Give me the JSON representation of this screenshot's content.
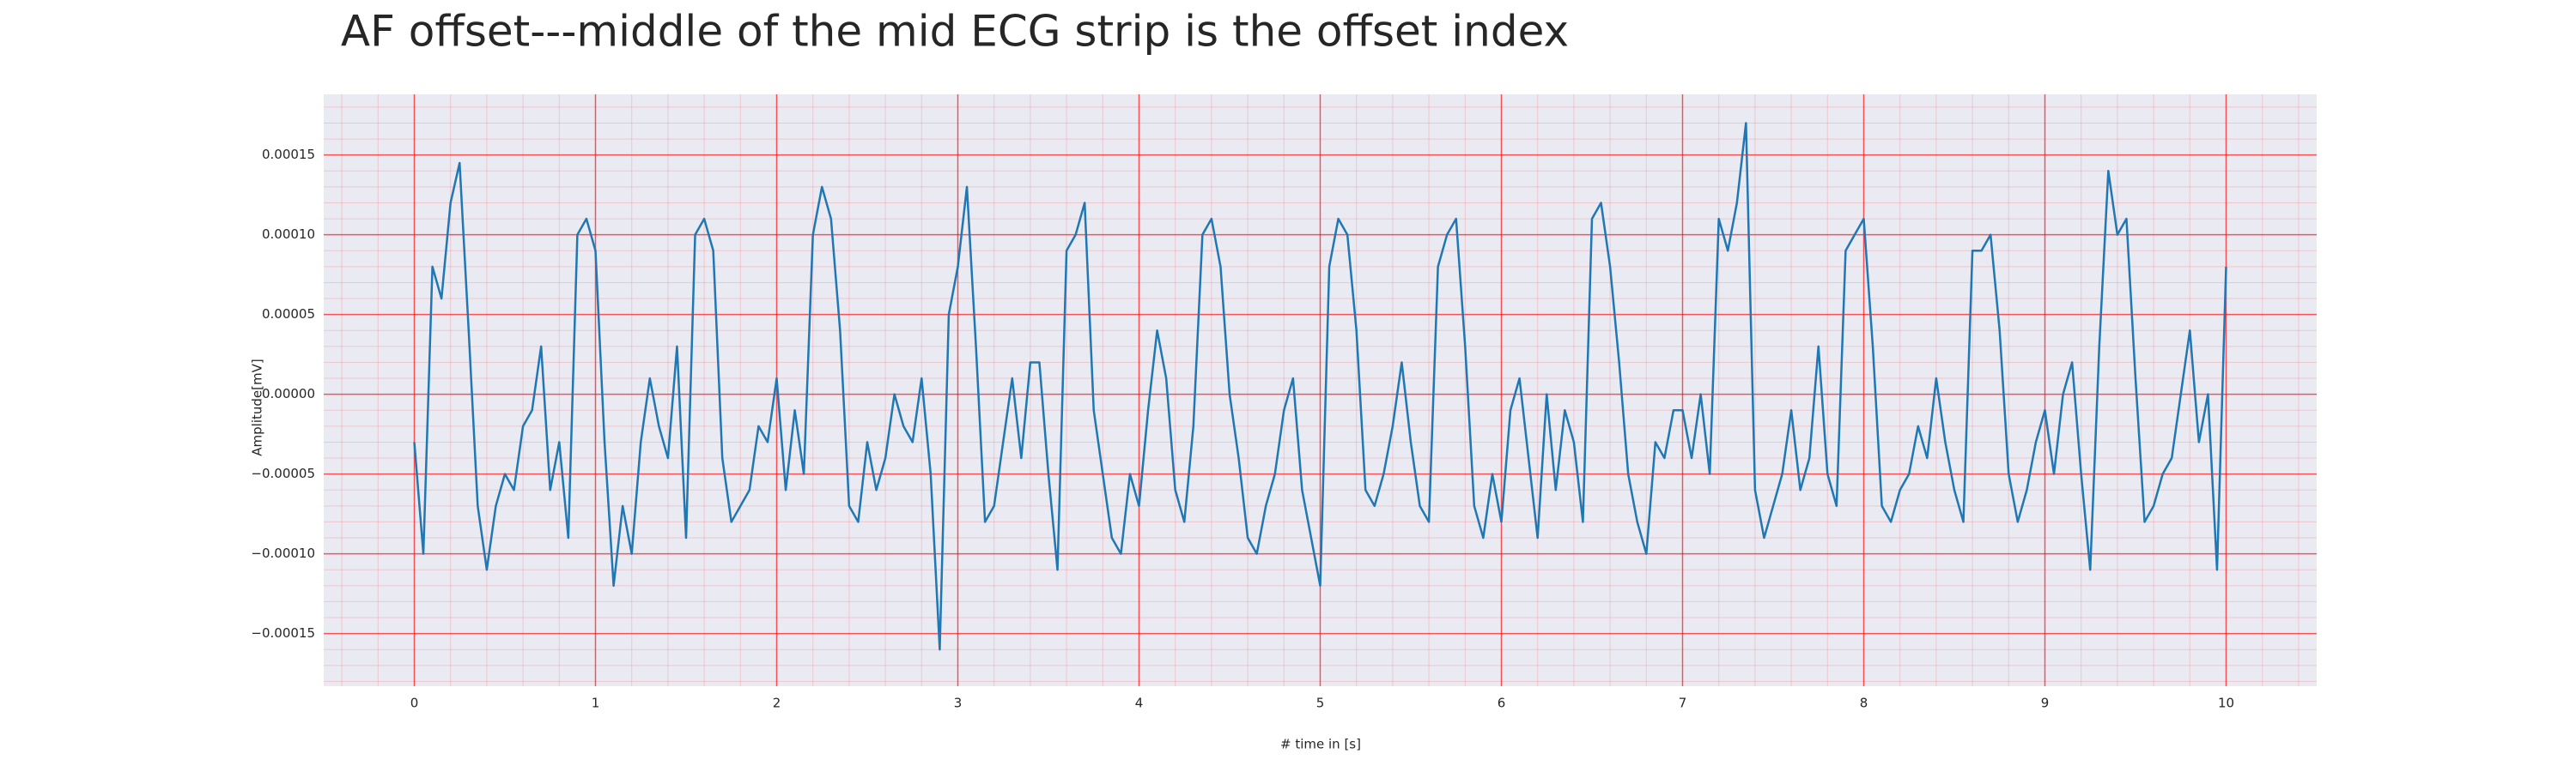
{
  "chart_data": {
    "type": "line",
    "title": "AF offset---middle of the mid ECG strip is the offset index",
    "xlabel": "# time in [s]",
    "ylabel": "Amplitude[mV]",
    "xlim": [
      -0.5,
      10.5
    ],
    "ylim": [
      -0.000183,
      0.000188
    ],
    "xticks": [
      0,
      1,
      2,
      3,
      4,
      5,
      6,
      7,
      8,
      9,
      10
    ],
    "yticks": [
      {
        "value": -0.00015,
        "label": "−0.00015"
      },
      {
        "value": -0.0001,
        "label": "−0.00010"
      },
      {
        "value": -5e-05,
        "label": "−0.00005"
      },
      {
        "value": 0,
        "label": "0.00000"
      },
      {
        "value": 5e-05,
        "label": "0.00005"
      },
      {
        "value": 0.0001,
        "label": "0.00010"
      },
      {
        "value": 0.00015,
        "label": "0.00015"
      }
    ],
    "grid": true,
    "grid_color": "#ff0000",
    "background": "#eaeaf2",
    "x": [
      0,
      0.05,
      0.1,
      0.15,
      0.2,
      0.25,
      0.3,
      0.35,
      0.4,
      0.45,
      0.5,
      0.55,
      0.6,
      0.65,
      0.7,
      0.75,
      0.8,
      0.85,
      0.9,
      0.95,
      1,
      1.05,
      1.1,
      1.15,
      1.2,
      1.25,
      1.3,
      1.35,
      1.4,
      1.45,
      1.5,
      1.55,
      1.6,
      1.65,
      1.7,
      1.75,
      1.8,
      1.85,
      1.9,
      1.95,
      2,
      2.05,
      2.1,
      2.15,
      2.2,
      2.25,
      2.3,
      2.35,
      2.4,
      2.45,
      2.5,
      2.55,
      2.6,
      2.65,
      2.7,
      2.75,
      2.8,
      2.85,
      2.9,
      2.95,
      3,
      3.05,
      3.1,
      3.15,
      3.2,
      3.25,
      3.3,
      3.35,
      3.4,
      3.45,
      3.5,
      3.55,
      3.6,
      3.65,
      3.7,
      3.75,
      3.8,
      3.85,
      3.9,
      3.95,
      4,
      4.05,
      4.1,
      4.15,
      4.2,
      4.25,
      4.3,
      4.35,
      4.4,
      4.45,
      4.5,
      4.55,
      4.6,
      4.65,
      4.7,
      4.75,
      4.8,
      4.85,
      4.9,
      4.95,
      5,
      5.05,
      5.1,
      5.15,
      5.2,
      5.25,
      5.3,
      5.35,
      5.4,
      5.45,
      5.5,
      5.55,
      5.6,
      5.65,
      5.7,
      5.75,
      5.8,
      5.85,
      5.9,
      5.95,
      6,
      6.05,
      6.1,
      6.15,
      6.2,
      6.25,
      6.3,
      6.35,
      6.4,
      6.45,
      6.5,
      6.55,
      6.6,
      6.65,
      6.7,
      6.75,
      6.8,
      6.85,
      6.9,
      6.95,
      7,
      7.05,
      7.1,
      7.15,
      7.2,
      7.25,
      7.3,
      7.35,
      7.4,
      7.45,
      7.5,
      7.55,
      7.6,
      7.65,
      7.7,
      7.75,
      7.8,
      7.85,
      7.9,
      7.95,
      8,
      8.05,
      8.1,
      8.15,
      8.2,
      8.25,
      8.3,
      8.35,
      8.4,
      8.45,
      8.5,
      8.55,
      8.6,
      8.65,
      8.7,
      8.75,
      8.8,
      8.85,
      8.9,
      8.95,
      9,
      9.05,
      9.1,
      9.15,
      9.2,
      9.25,
      9.3,
      9.35,
      9.4,
      9.45,
      9.5,
      9.55,
      9.6,
      9.65,
      9.7,
      9.75,
      9.8,
      9.85,
      9.9,
      9.95,
      10
    ],
    "series": [
      {
        "color": "#1f77b4",
        "values": [
          -3e-05,
          -0.0001,
          8e-05,
          6e-05,
          0.00012,
          0.000145,
          4e-05,
          -7e-05,
          -0.00011,
          -7e-05,
          -5e-05,
          -6e-05,
          -2e-05,
          -1e-05,
          3e-05,
          -6e-05,
          -3e-05,
          -9e-05,
          0.0001,
          0.00011,
          9e-05,
          -3e-05,
          -0.00012,
          -7e-05,
          -0.0001,
          -3e-05,
          1e-05,
          -2e-05,
          -4e-05,
          3e-05,
          -9e-05,
          0.0001,
          0.00011,
          9e-05,
          -4e-05,
          -8e-05,
          -7e-05,
          -6e-05,
          -2e-05,
          -3e-05,
          1e-05,
          -6e-05,
          -1e-05,
          -5e-05,
          0.0001,
          0.00013,
          0.00011,
          4e-05,
          -7e-05,
          -8e-05,
          -3e-05,
          -6e-05,
          -4e-05,
          0,
          -2e-05,
          -3e-05,
          1e-05,
          -5e-05,
          -0.00016,
          5e-05,
          8e-05,
          0.00013,
          3e-05,
          -8e-05,
          -7e-05,
          -3e-05,
          1e-05,
          -4e-05,
          2e-05,
          2e-05,
          -5e-05,
          -0.00011,
          9e-05,
          0.0001,
          0.00012,
          -1e-05,
          -5e-05,
          -9e-05,
          -0.0001,
          -5e-05,
          -7e-05,
          -1e-05,
          4e-05,
          1e-05,
          -6e-05,
          -8e-05,
          -2e-05,
          0.0001,
          0.00011,
          8e-05,
          0,
          -4e-05,
          -9e-05,
          -0.0001,
          -7e-05,
          -5e-05,
          -1e-05,
          1e-05,
          -6e-05,
          -9e-05,
          -0.00012,
          8e-05,
          0.00011,
          0.0001,
          4e-05,
          -6e-05,
          -7e-05,
          -5e-05,
          -2e-05,
          2e-05,
          -3e-05,
          -7e-05,
          -8e-05,
          8e-05,
          0.0001,
          0.00011,
          3e-05,
          -7e-05,
          -9e-05,
          -5e-05,
          -8e-05,
          -1e-05,
          1e-05,
          -4e-05,
          -9e-05,
          0,
          -6e-05,
          -1e-05,
          -3e-05,
          -8e-05,
          0.00011,
          0.00012,
          8e-05,
          2e-05,
          -5e-05,
          -8e-05,
          -0.0001,
          -3e-05,
          -4e-05,
          -1e-05,
          -1e-05,
          -4e-05,
          0,
          -5e-05,
          0.00011,
          9e-05,
          0.00012,
          0.00017,
          -6e-05,
          -9e-05,
          -7e-05,
          -5e-05,
          -1e-05,
          -6e-05,
          -4e-05,
          3e-05,
          -5e-05,
          -7e-05,
          9e-05,
          0.0001,
          0.00011,
          3e-05,
          -7e-05,
          -8e-05,
          -6e-05,
          -5e-05,
          -2e-05,
          -4e-05,
          1e-05,
          -3e-05,
          -6e-05,
          -8e-05,
          9e-05,
          9e-05,
          0.0001,
          4e-05,
          -5e-05,
          -8e-05,
          -6e-05,
          -3e-05,
          -1e-05,
          -5e-05,
          0,
          2e-05,
          -5e-05,
          -0.00011,
          3e-05,
          0.00014,
          0.0001,
          0.00011,
          1e-05,
          -8e-05,
          -7e-05,
          -5e-05,
          -4e-05,
          0,
          4e-05,
          -3e-05,
          0,
          -0.00011,
          8e-05
        ]
      }
    ]
  }
}
